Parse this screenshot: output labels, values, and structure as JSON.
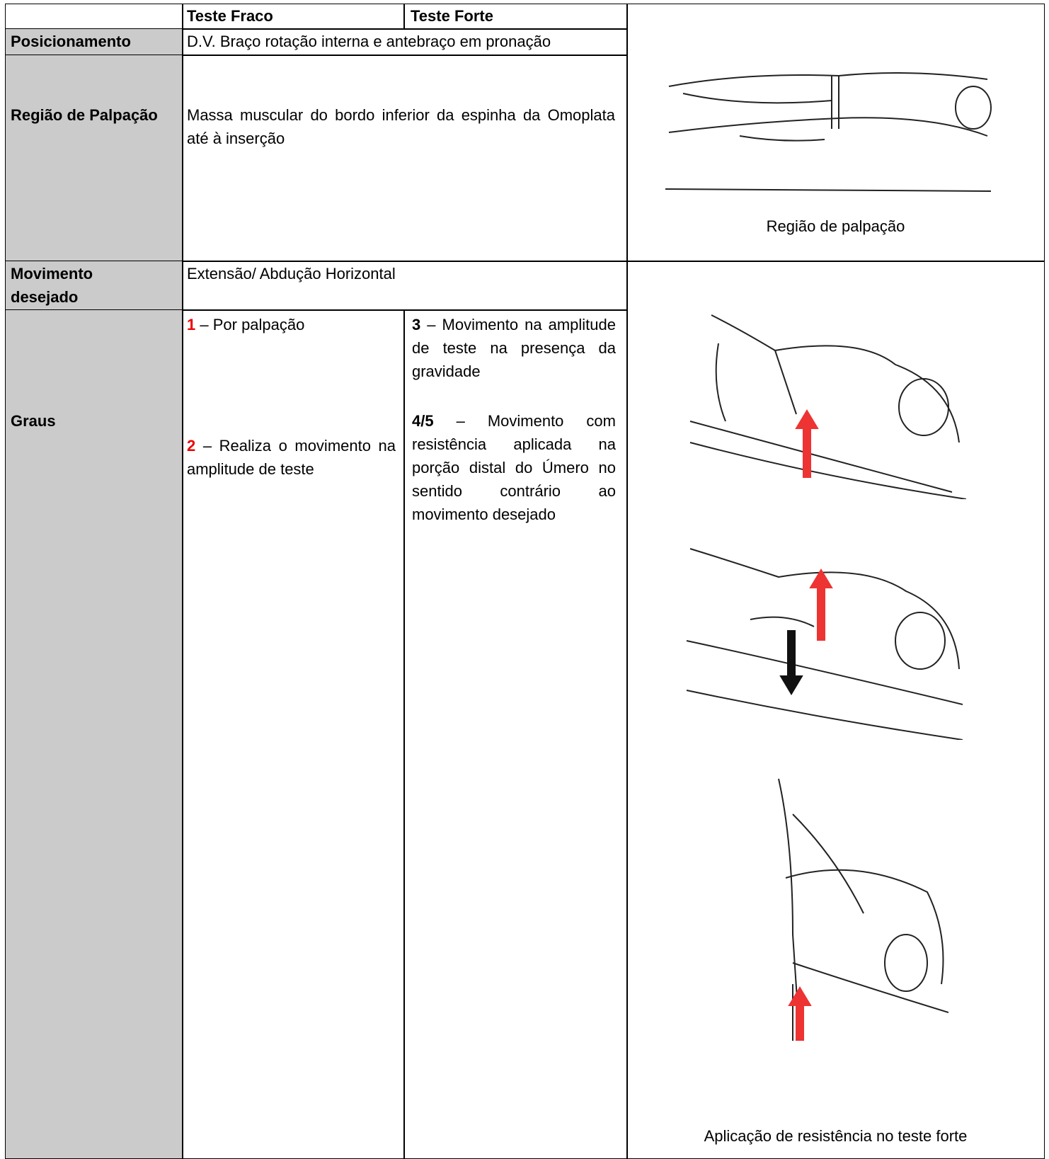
{
  "table": {
    "header": [
      "Teste Fraco",
      "Teste Forte"
    ],
    "rows": [
      {
        "label": "Posicionamento",
        "text": "D.V. Braço rotação interna e antebraço em pronação"
      },
      {
        "label": "Região de Palpação",
        "text": "Massa muscular do bordo inferior da espinha da Omoplata até à inserção"
      },
      {
        "label": "Movimento desejado",
        "text": "Extensão/ Abdução Horizontal"
      },
      {
        "label": "Graus",
        "weak_grades": [
          {
            "grade": "1",
            "text": "– Por palpação"
          },
          {
            "grade": "2",
            "text": "– Realiza o movimento na amplitude de teste"
          }
        ],
        "strong_grades": [
          {
            "grade": "3",
            "text": "– Movimento na amplitude de teste na presença da gravidade"
          },
          {
            "grade": "4/5",
            "text": "– Movimento com resistência aplicada na porção distal do Úmero no sentido contrário ao movimento desejado"
          }
        ]
      }
    ]
  },
  "figures": [
    {
      "caption": "Região de palpação"
    },
    {
      "caption": "Aplicação de resistência no teste forte"
    }
  ]
}
